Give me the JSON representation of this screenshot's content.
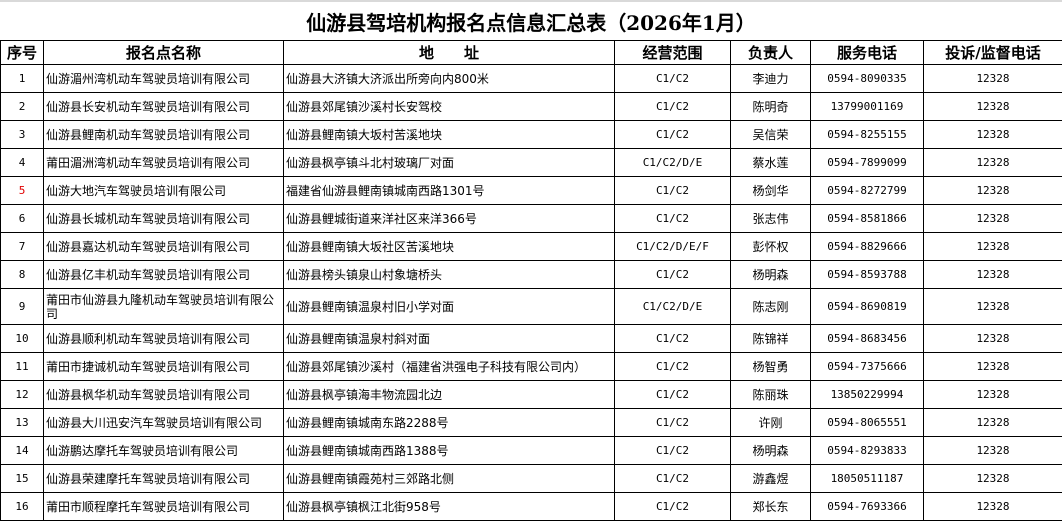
{
  "title": "仙游县驾培机构报名点信息汇总表（2026年1月）",
  "headers": [
    "序号",
    "报名点名称",
    "地　　址",
    "经营范围",
    "负责人",
    "服务电话",
    "投诉/监督电话"
  ],
  "accent_colors": {
    "highlighted_index": "#e00000"
  },
  "rows": [
    {
      "no": "1",
      "name": "仙游湄州湾机动车驾驶员培训有限公司",
      "address": "仙游县大济镇大济派出所旁向内800米",
      "scope": "C1/C2",
      "person": "李迪力",
      "phone": "0594-8090335",
      "complaint": "12328"
    },
    {
      "no": "2",
      "name": "仙游县长安机动车驾驶员培训有限公司",
      "address": "仙游县郊尾镇沙溪村长安驾校",
      "scope": "C1/C2",
      "person": "陈明奇",
      "phone": "13799001169",
      "complaint": "12328"
    },
    {
      "no": "3",
      "name": "仙游县鲤南机动车驾驶员培训有限公司",
      "address": "仙游县鲤南镇大坂村苦溪地块",
      "scope": "C1/C2",
      "person": "吴信荣",
      "phone": "0594-8255155",
      "complaint": "12328"
    },
    {
      "no": "4",
      "name": "莆田湄洲湾机动车驾驶员培训有限公司",
      "address": "仙游县枫亭镇斗北村玻璃厂对面",
      "scope": "C1/C2/D/E",
      "person": "蔡水莲",
      "phone": "0594-7899099",
      "complaint": "12328"
    },
    {
      "no": "5",
      "name": "仙游大地汽车驾驶员培训有限公司",
      "address": "福建省仙游县鲤南镇城南西路1301号",
      "scope": "C1/C2",
      "person": "杨剑华",
      "phone": "0594-8272799",
      "complaint": "12328",
      "red": true
    },
    {
      "no": "6",
      "name": "仙游县长城机动车驾驶员培训有限公司",
      "address": "仙游县鲤城街道来洋社区来洋366号",
      "scope": "C1/C2",
      "person": "张志伟",
      "phone": "0594-8581866",
      "complaint": "12328"
    },
    {
      "no": "7",
      "name": "仙游县嘉达机动车驾驶员培训有限公司",
      "address": "仙游县鲤南镇大坂社区苦溪地块",
      "scope": "C1/C2/D/E/F",
      "person": "彭怀权",
      "phone": "0594-8829666",
      "complaint": "12328"
    },
    {
      "no": "8",
      "name": "仙游县亿丰机动车驾驶员培训有限公司",
      "address": "仙游县榜头镇泉山村象塘桥头",
      "scope": "C1/C2",
      "person": "杨明森",
      "phone": "0594-8593788",
      "complaint": "12328"
    },
    {
      "no": "9",
      "name": "莆田市仙游县九隆机动车驾驶员培训有限公司",
      "address": "仙游县鲤南镇温泉村旧小学对面",
      "scope": "C1/C2/D/E",
      "person": "陈志刚",
      "phone": "0594-8690819",
      "complaint": "12328",
      "tall": true
    },
    {
      "no": "10",
      "name": "仙游县顺利机动车驾驶员培训有限公司",
      "address": "仙游县鲤南镇温泉村斜对面",
      "scope": "C1/C2",
      "person": "陈锦祥",
      "phone": "0594-8683456",
      "complaint": "12328"
    },
    {
      "no": "11",
      "name": "莆田市捷诚机动车驾驶员培训有限公司",
      "address": "仙游县郊尾镇沙溪村（福建省洪强电子科技有限公司内）",
      "scope": "C1/C2",
      "person": "杨智勇",
      "phone": "0594-7375666",
      "complaint": "12328"
    },
    {
      "no": "12",
      "name": "仙游县枫华机动车驾驶员培训有限公司",
      "address": "仙游县枫亭镇海丰物流园北边",
      "scope": "C1/C2",
      "person": "陈丽珠",
      "phone": "13850229994",
      "complaint": "12328"
    },
    {
      "no": "13",
      "name": "仙游县大川迅安汽车驾驶员培训有限公司",
      "address": "仙游县鲤南镇城南东路2288号",
      "scope": "C1/C2",
      "person": "许刚",
      "phone": "0594-8065551",
      "complaint": "12328"
    },
    {
      "no": "14",
      "name": "仙游鹏达摩托车驾驶员培训有限公司",
      "address": "仙游县鲤南镇城南西路1388号",
      "scope": "C1/C2",
      "person": "杨明森",
      "phone": "0594-8293833",
      "complaint": "12328"
    },
    {
      "no": "15",
      "name": "仙游县荣建摩托车驾驶员培训有限公司",
      "address": "仙游县鲤南镇霞苑村三郊路北侧",
      "scope": "C1/C2",
      "person": "游鑫煜",
      "phone": "18050511187",
      "complaint": "12328"
    },
    {
      "no": "16",
      "name": "莆田市顺程摩托车驾驶员培训有限公司",
      "address": "仙游县枫亭镇枫江北街958号",
      "scope": "C1/C2",
      "person": "郑长东",
      "phone": "0594-7693366",
      "complaint": "12328"
    }
  ]
}
